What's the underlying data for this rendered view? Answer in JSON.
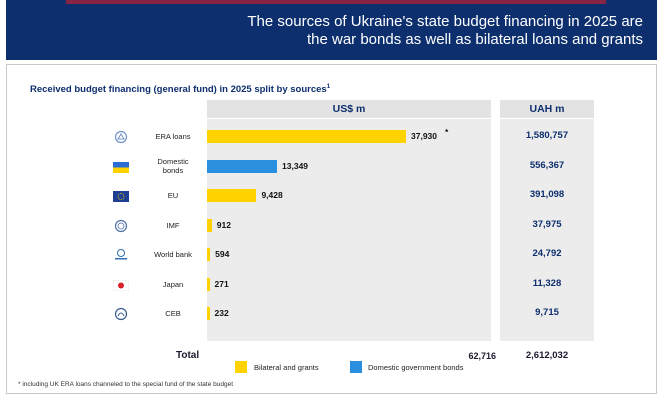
{
  "header": {
    "title": "The sources of Ukraine's state budget financing in 2025 are the war bonds as well as bilateral loans and grants"
  },
  "chart_data": {
    "type": "bar",
    "title": "Received budget financing (general fund) in 2025 split by sources",
    "title_footnote_marker": "1",
    "columns": {
      "usd": "US$ m",
      "uah": "UAH m"
    },
    "categories": [
      "ERA loans",
      "Domestic bonds",
      "EU",
      "IMF",
      "World bank",
      "Japan",
      "CEB"
    ],
    "values_usd": [
      37930,
      13349,
      9428,
      912,
      594,
      271,
      232
    ],
    "labels_usd": [
      "37,930",
      "13,349",
      "9,428",
      "912",
      "594",
      "271",
      "232"
    ],
    "labels_uah": [
      "1,580,757",
      "556,367",
      "391,098",
      "37,975",
      "24,792",
      "11,328",
      "9,715"
    ],
    "series_type": [
      "bilateral",
      "domestic",
      "bilateral",
      "bilateral",
      "bilateral",
      "bilateral",
      "bilateral"
    ],
    "annotation": {
      "category": "ERA loans",
      "text": "*"
    },
    "total": {
      "label": "Total",
      "usd": "62,716",
      "uah": "2,612,032"
    },
    "legend": [
      {
        "key": "bilateral",
        "label": "Bilateral and grants",
        "color": "#ffd200"
      },
      {
        "key": "domestic",
        "label": "Domestic government bonds",
        "color": "#2b8fe0"
      }
    ],
    "xlim": [
      0,
      37930
    ]
  },
  "footnote": "* including UK ERA loans channeled to the special fund of the state budget",
  "colors": {
    "navy": "#0d2f6e",
    "yellow": "#ffd200",
    "blue": "#2b8fe0"
  }
}
